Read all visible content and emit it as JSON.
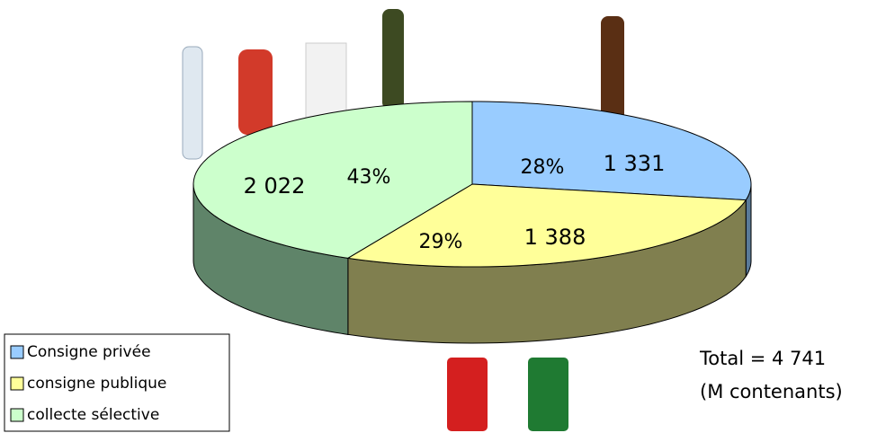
{
  "chart_data": {
    "type": "pie3d",
    "categories": [
      "Consigne privée",
      "consigne publique",
      "collecte sélective"
    ],
    "values": [
      1331,
      1388,
      2022
    ],
    "value_labels": [
      "1 331",
      "1 388",
      "2 022"
    ],
    "percent_labels": [
      "28%",
      "29%",
      "43%"
    ],
    "colors": [
      "#99ccff",
      "#ffff99",
      "#ccffcc"
    ],
    "side_colors": [
      "#5a7a99",
      "#807f4f",
      "#5f8469"
    ],
    "total_label": "Total = 4 741",
    "unit_label": "(M contenants)",
    "legend": "bottom-left"
  }
}
